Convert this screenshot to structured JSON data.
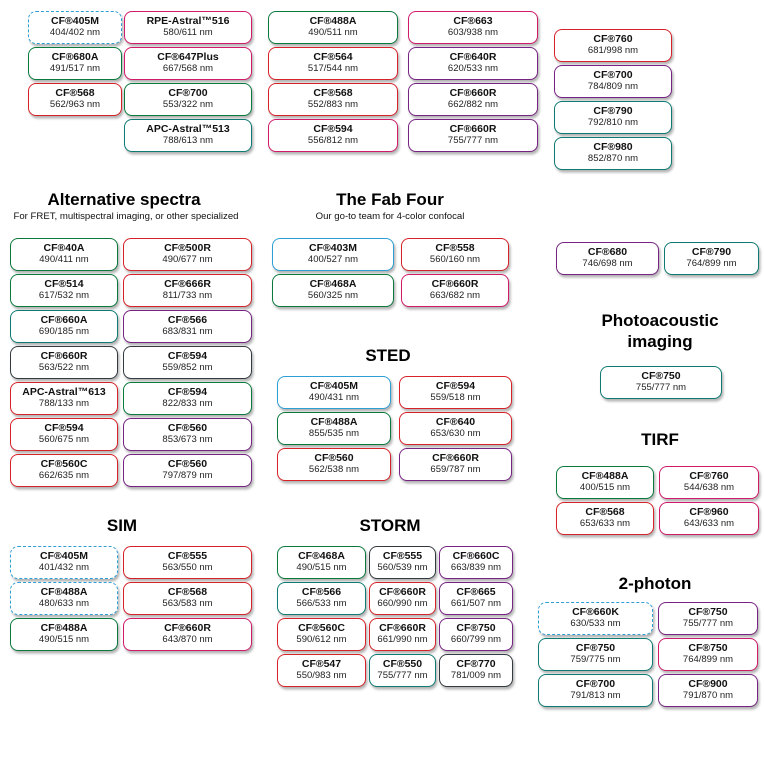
{
  "colors": {
    "blue": "#2e9fd4",
    "green": "#0a7a3c",
    "red": "#d62228",
    "magenta": "#d01a6a",
    "purple": "#772383",
    "teal": "#0e7a72",
    "dark": "#333a40"
  },
  "sections": {
    "top": {
      "columns": [
        {
          "chips": [
            {
              "name": "CF®405M",
              "wl": "404/402 nm",
              "color": "blue",
              "dashed": true
            },
            {
              "name": "CF®680A",
              "wl": "491/517 nm",
              "color": "green"
            },
            {
              "name": "CF®568",
              "wl": "562/963 nm",
              "color": "red"
            }
          ]
        },
        {
          "chips": [
            {
              "name": "RPE-Astral™516",
              "wl": "580/611 nm",
              "color": "magenta"
            },
            {
              "name": "CF®647Plus",
              "wl": "667/568 nm",
              "color": "magenta"
            },
            {
              "name": "CF®700",
              "wl": "553/322 nm",
              "color": "green"
            },
            {
              "name": "APC-Astral™513",
              "wl": "788/613 nm",
              "color": "teal"
            }
          ]
        },
        {
          "chips": [
            {
              "name": "CF®488A",
              "wl": "490/511 nm",
              "color": "green"
            },
            {
              "name": "CF®564",
              "wl": "517/544 nm",
              "color": "red"
            },
            {
              "name": "CF®568",
              "wl": "552/883 nm",
              "color": "red"
            },
            {
              "name": "CF®594",
              "wl": "556/812 nm",
              "color": "magenta"
            }
          ]
        },
        {
          "chips": [
            {
              "name": "CF®663",
              "wl": "603/938 nm",
              "color": "magenta"
            },
            {
              "name": "CF®640R",
              "wl": "620/533 nm",
              "color": "purple"
            },
            {
              "name": "CF®660R",
              "wl": "662/882 nm",
              "color": "purple"
            },
            {
              "name": "CF®660R",
              "wl": "755/777 nm",
              "color": "purple"
            }
          ]
        },
        {
          "chips": [
            {
              "name": "CF®760",
              "wl": "681/998 nm",
              "color": "red"
            },
            {
              "name": "CF®700",
              "wl": "784/809 nm",
              "color": "purple"
            },
            {
              "name": "CF®790",
              "wl": "792/810 nm",
              "color": "teal"
            },
            {
              "name": "CF®980",
              "wl": "852/870 nm",
              "color": "teal"
            }
          ]
        }
      ]
    },
    "alternative": {
      "title": "Alternative spectra",
      "subtitle": "For FRET, multispectral imaging, or other specialized",
      "columns": [
        {
          "chips": [
            {
              "name": "CF®40A",
              "wl": "490/411 nm",
              "color": "green"
            },
            {
              "name": "CF®514",
              "wl": "617/532 nm",
              "color": "green"
            },
            {
              "name": "CF®660A",
              "wl": "690/185 nm",
              "color": "teal"
            },
            {
              "name": "CF®660R",
              "wl": "563/522 nm",
              "color": "dark"
            },
            {
              "name": "APC-Astral™613",
              "wl": "788/133 nm",
              "color": "red"
            },
            {
              "name": "CF®594",
              "wl": "560/675 nm",
              "color": "red"
            },
            {
              "name": "CF®560C",
              "wl": "662/635 nm",
              "color": "red"
            }
          ]
        },
        {
          "chips": [
            {
              "name": "CF®500R",
              "wl": "490/677 nm",
              "color": "red"
            },
            {
              "name": "CF®666R",
              "wl": "811/733 nm",
              "color": "red"
            },
            {
              "name": "CF®566",
              "wl": "683/831 nm",
              "color": "purple"
            },
            {
              "name": "CF®594",
              "wl": "559/852 nm",
              "color": "dark"
            },
            {
              "name": "CF®594",
              "wl": "822/833 nm",
              "color": "green"
            },
            {
              "name": "CF®560",
              "wl": "853/673 nm",
              "color": "purple"
            },
            {
              "name": "CF®560",
              "wl": "797/879 nm",
              "color": "purple"
            }
          ]
        }
      ]
    },
    "fab_four": {
      "title": "The Fab Four",
      "subtitle": "Our go-to team for 4-color confocal",
      "columns": [
        {
          "chips": [
            {
              "name": "CF®403M",
              "wl": "400/527 nm",
              "color": "blue"
            },
            {
              "name": "CF®468A",
              "wl": "560/325 nm",
              "color": "green"
            }
          ]
        },
        {
          "chips": [
            {
              "name": "CF®558",
              "wl": "560/160 nm",
              "color": "red"
            },
            {
              "name": "CF®660R",
              "wl": "663/682 nm",
              "color": "magenta"
            }
          ]
        }
      ]
    },
    "sted": {
      "title": "STED",
      "columns": [
        {
          "chips": [
            {
              "name": "CF®405M",
              "wl": "490/431 nm",
              "color": "blue"
            },
            {
              "name": "CF®488A",
              "wl": "855/535 nm",
              "color": "green"
            },
            {
              "name": "CF®560",
              "wl": "562/538 nm",
              "color": "red"
            }
          ]
        },
        {
          "chips": [
            {
              "name": "CF®594",
              "wl": "559/518 nm",
              "color": "red"
            },
            {
              "name": "CF®640",
              "wl": "653/630 nm",
              "color": "red"
            },
            {
              "name": "CF®660R",
              "wl": "659/787 nm",
              "color": "purple"
            }
          ]
        }
      ]
    },
    "sim": {
      "title": "SIM",
      "columns": [
        {
          "chips": [
            {
              "name": "CF®405M",
              "wl": "401/432 nm",
              "color": "blue",
              "dashed": true
            },
            {
              "name": "CF®488A",
              "wl": "480/633 nm",
              "color": "blue",
              "dashed": true
            },
            {
              "name": "CF®488A",
              "wl": "490/515 nm",
              "color": "green"
            }
          ]
        },
        {
          "chips": [
            {
              "name": "CF®555",
              "wl": "563/550 nm",
              "color": "red"
            },
            {
              "name": "CF®568",
              "wl": "563/583 nm",
              "color": "red"
            },
            {
              "name": "CF®660R",
              "wl": "643/870 nm",
              "color": "magenta"
            }
          ]
        }
      ]
    },
    "storm": {
      "title": "STORM",
      "columns": [
        {
          "chips": [
            {
              "name": "CF®468A",
              "wl": "490/515 nm",
              "color": "green"
            },
            {
              "name": "CF®566",
              "wl": "566/533 nm",
              "color": "teal"
            },
            {
              "name": "CF®560C",
              "wl": "590/612 nm",
              "color": "red"
            },
            {
              "name": "CF®547",
              "wl": "550/983 nm",
              "color": "red"
            }
          ]
        },
        {
          "chips": [
            {
              "name": "CF®555",
              "wl": "560/539 nm",
              "color": "dark"
            },
            {
              "name": "CF®660R",
              "wl": "660/990 nm",
              "color": "red"
            },
            {
              "name": "CF®660R",
              "wl": "661/990 nm",
              "color": "red"
            },
            {
              "name": "CF®550",
              "wl": "755/777 nm",
              "color": "teal"
            }
          ]
        },
        {
          "chips": [
            {
              "name": "CF®660C",
              "wl": "663/839 nm",
              "color": "purple"
            },
            {
              "name": "CF®665",
              "wl": "661/507 nm",
              "color": "purple"
            },
            {
              "name": "CF®750",
              "wl": "660/799 nm",
              "color": "purple"
            },
            {
              "name": "CF®770",
              "wl": "781/009 nm",
              "color": "dark"
            }
          ]
        }
      ]
    },
    "far_red_pair": {
      "columns": [
        {
          "chips": [
            {
              "name": "CF®680",
              "wl": "746/698 nm",
              "color": "purple"
            }
          ]
        },
        {
          "chips": [
            {
              "name": "CF®790",
              "wl": "764/899 nm",
              "color": "teal"
            }
          ]
        }
      ]
    },
    "photoacoustic": {
      "title": "Photoacoustic imaging",
      "columns": [
        {
          "chips": [
            {
              "name": "CF®750",
              "wl": "755/777 nm",
              "color": "teal"
            }
          ]
        }
      ]
    },
    "tirf": {
      "title": "TIRF",
      "columns": [
        {
          "chips": [
            {
              "name": "CF®488A",
              "wl": "400/515 nm",
              "color": "green"
            },
            {
              "name": "CF®568",
              "wl": "653/633 nm",
              "color": "red"
            }
          ]
        },
        {
          "chips": [
            {
              "name": "CF®760",
              "wl": "544/638 nm",
              "color": "magenta"
            },
            {
              "name": "CF®960",
              "wl": "643/633 nm",
              "color": "magenta"
            }
          ]
        }
      ]
    },
    "two_photon": {
      "title": "2-photon",
      "columns": [
        {
          "chips": [
            {
              "name": "CF®660K",
              "wl": "630/533 nm",
              "color": "blue",
              "dashed": true
            },
            {
              "name": "CF®750",
              "wl": "759/775 nm",
              "color": "teal"
            },
            {
              "name": "CF®700",
              "wl": "791/813 nm",
              "color": "teal"
            }
          ]
        },
        {
          "chips": [
            {
              "name": "CF®750",
              "wl": "755/777 nm",
              "color": "purple"
            },
            {
              "name": "CF®750",
              "wl": "764/899 nm",
              "color": "magenta"
            },
            {
              "name": "CF®900",
              "wl": "791/870 nm",
              "color": "purple"
            }
          ]
        }
      ]
    }
  }
}
